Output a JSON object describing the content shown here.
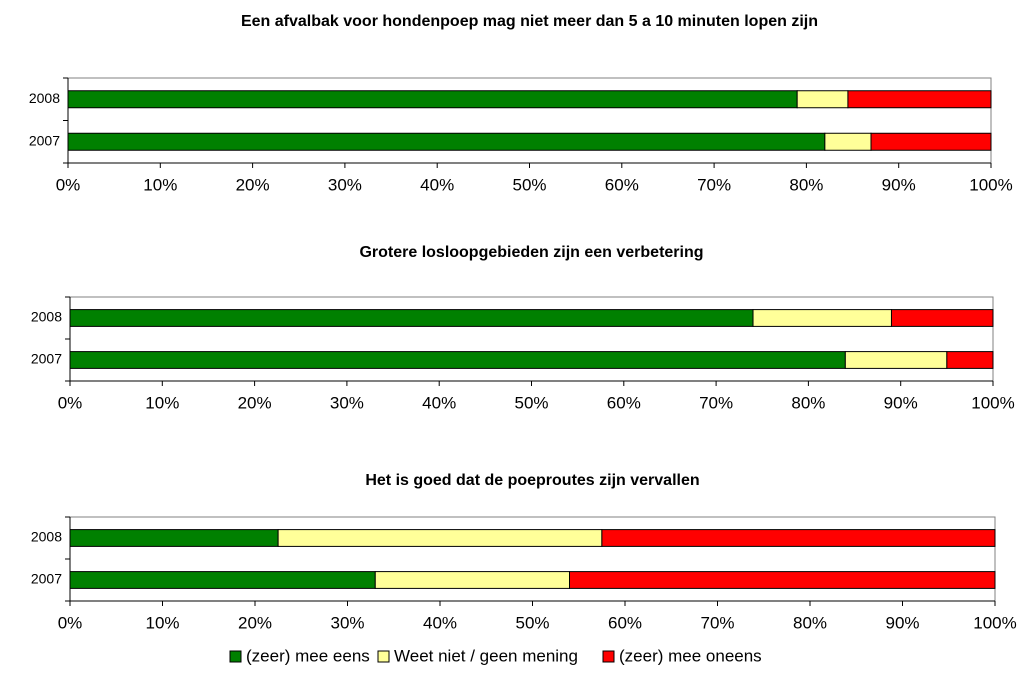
{
  "chart_data": [
    {
      "type": "stacked-barh",
      "title": "Een afvalbak voor hondenpoep mag niet meer dan 5 a 10 minuten lopen zijn",
      "categories": [
        "2008",
        "2007"
      ],
      "series": [
        {
          "values": [
            79,
            82
          ]
        },
        {
          "values": [
            5.5,
            5
          ]
        },
        {
          "values": [
            15.5,
            13
          ]
        }
      ],
      "xlim": [
        0,
        100
      ],
      "xticks": [
        {
          "value": 0,
          "label": "0%"
        },
        {
          "value": 10,
          "label": "10%"
        },
        {
          "value": 20,
          "label": "20%"
        },
        {
          "value": 30,
          "label": "30%"
        },
        {
          "value": 40,
          "label": "40%"
        },
        {
          "value": 50,
          "label": "50%"
        },
        {
          "value": 60,
          "label": "60%"
        },
        {
          "value": 70,
          "label": "70%"
        },
        {
          "value": 80,
          "label": "80%"
        },
        {
          "value": 90,
          "label": "90%"
        },
        {
          "value": 100,
          "label": "100%"
        }
      ]
    },
    {
      "type": "stacked-barh",
      "title": "Grotere losloopgebieden zijn een verbetering",
      "categories": [
        "2008",
        "2007"
      ],
      "series": [
        {
          "values": [
            74,
            84
          ]
        },
        {
          "values": [
            15,
            11
          ]
        },
        {
          "values": [
            11,
            5
          ]
        }
      ],
      "xlim": [
        0,
        100
      ],
      "xticks": [
        {
          "value": 0,
          "label": "0%"
        },
        {
          "value": 10,
          "label": "10%"
        },
        {
          "value": 20,
          "label": "20%"
        },
        {
          "value": 30,
          "label": "30%"
        },
        {
          "value": 40,
          "label": "40%"
        },
        {
          "value": 50,
          "label": "50%"
        },
        {
          "value": 60,
          "label": "60%"
        },
        {
          "value": 70,
          "label": "70%"
        },
        {
          "value": 80,
          "label": "80%"
        },
        {
          "value": 90,
          "label": "90%"
        },
        {
          "value": 100,
          "label": "100%"
        }
      ]
    },
    {
      "type": "stacked-barh",
      "title": "Het is goed dat de poeproutes zijn vervallen",
      "categories": [
        "2008",
        "2007"
      ],
      "series": [
        {
          "values": [
            22.5,
            33
          ]
        },
        {
          "values": [
            35,
            21
          ]
        },
        {
          "values": [
            42.5,
            46
          ]
        }
      ],
      "xlim": [
        0,
        100
      ],
      "xticks": [
        {
          "value": 0,
          "label": "0%"
        },
        {
          "value": 10,
          "label": "10%"
        },
        {
          "value": 20,
          "label": "20%"
        },
        {
          "value": 30,
          "label": "30%"
        },
        {
          "value": 40,
          "label": "40%"
        },
        {
          "value": 50,
          "label": "50%"
        },
        {
          "value": 60,
          "label": "60%"
        },
        {
          "value": 70,
          "label": "70%"
        },
        {
          "value": 80,
          "label": "80%"
        },
        {
          "value": 90,
          "label": "90%"
        },
        {
          "value": 100,
          "label": "100%"
        }
      ]
    }
  ],
  "legend": [
    {
      "name": "(zeer) mee eens",
      "color": "#008000"
    },
    {
      "name": "Weet niet / geen mening",
      "color": "#ffff99"
    },
    {
      "name": "(zeer) mee oneens",
      "color": "#ff0000"
    }
  ]
}
